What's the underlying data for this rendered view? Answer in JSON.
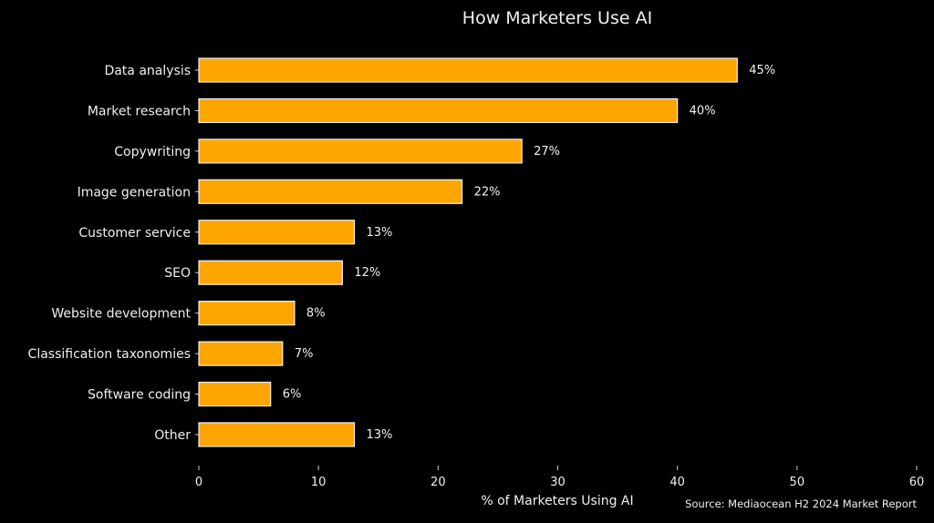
{
  "chart_data": {
    "type": "bar",
    "orientation": "horizontal",
    "title": "How Marketers Use AI",
    "xlabel": "% of Marketers Using AI",
    "ylabel": "",
    "source": "Source: Mediaocean H2 2024 Market Report",
    "categories": [
      "Data analysis",
      "Market research",
      "Copywriting",
      "Image generation",
      "Customer service",
      "SEO",
      "Website development",
      "Classification taxonomies",
      "Software coding",
      "Other"
    ],
    "values": [
      45,
      40,
      27,
      22,
      13,
      12,
      8,
      7,
      6,
      13
    ],
    "data_labels": [
      "45%",
      "40%",
      "27%",
      "22%",
      "13%",
      "12%",
      "8%",
      "7%",
      "6%",
      "13%"
    ],
    "xlim": [
      0,
      60
    ],
    "xticks": [
      "0",
      "10",
      "20",
      "30",
      "40",
      "50",
      "60"
    ],
    "grid": false,
    "colors": {
      "bar": "#FFA500",
      "bar_edge": "#F0F0F0",
      "background": "#000000",
      "text": "#F0F0F0"
    }
  }
}
